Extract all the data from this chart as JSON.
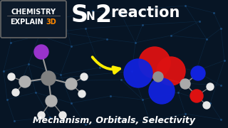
{
  "bg_color": "#071525",
  "subtitle": "Mechanism, Orbitals, Selectivity",
  "badge_line1": "CHEMISTRY",
  "badge_line2": "EXPLAIN",
  "badge_3d": "3D",
  "badge_3d_color": "#ff8800",
  "arrow_color": "#ffee00",
  "network_line_color": "#0d2d4a",
  "network_node_color": "#1a4a7a",
  "mol1_center_color": "#909090",
  "mol1_atom_color": "#c0c0c0",
  "mol1_h_color": "#e8e8e8",
  "mol1_purple_color": "#9933cc",
  "mol2_red_color": "#dd1111",
  "mol2_blue_color": "#1122dd",
  "mol2_gray_color": "#aaaaaa",
  "mol2_white_color": "#e8e8e8",
  "white": "#ffffff"
}
